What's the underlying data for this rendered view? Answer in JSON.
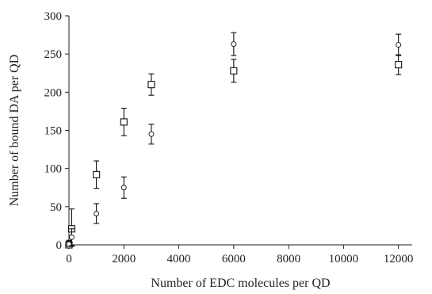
{
  "chart_data": {
    "type": "scatter",
    "xlabel": "Number of EDC molecules per QD",
    "ylabel": "Number of bound DA per QD",
    "xlim": [
      0,
      12500
    ],
    "ylim": [
      0,
      300
    ],
    "x_ticks": [
      0,
      2000,
      4000,
      6000,
      8000,
      10000,
      12000
    ],
    "y_ticks": [
      0,
      50,
      100,
      150,
      200,
      250,
      300
    ],
    "grid": false,
    "legend": "none",
    "series": [
      {
        "marker": "square",
        "points": [
          {
            "x": 0,
            "y": 0,
            "err": 6
          },
          {
            "x": 100,
            "y": 21,
            "err": 26
          },
          {
            "x": 1000,
            "y": 92,
            "err": 18
          },
          {
            "x": 2000,
            "y": 161,
            "err": 18
          },
          {
            "x": 3000,
            "y": 210,
            "err": 14
          },
          {
            "x": 6000,
            "y": 228,
            "err": 15
          },
          {
            "x": 12000,
            "y": 236,
            "err": 13
          }
        ]
      },
      {
        "marker": "circle",
        "points": [
          {
            "x": 0,
            "y": 1,
            "err": 4
          },
          {
            "x": 100,
            "y": 10,
            "err": 11
          },
          {
            "x": 1000,
            "y": 41,
            "err": 13
          },
          {
            "x": 2000,
            "y": 75,
            "err": 14
          },
          {
            "x": 3000,
            "y": 145,
            "err": 13
          },
          {
            "x": 6000,
            "y": 263,
            "err": 15
          },
          {
            "x": 12000,
            "y": 262,
            "err": 14
          }
        ]
      }
    ]
  }
}
